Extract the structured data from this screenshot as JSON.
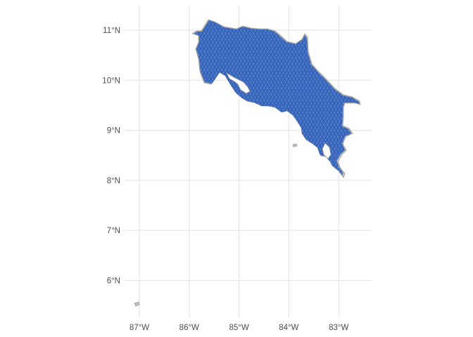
{
  "map": {
    "region": "Costa Rica",
    "fill_color": "#2f5fb8",
    "outline_color": "#9a9a9a",
    "pattern": "hexagonal grid",
    "grid": true,
    "x_ticks": [
      {
        "lon": -87,
        "label": "87°W"
      },
      {
        "lon": -86,
        "label": "86°W"
      },
      {
        "lon": -85,
        "label": "85°W"
      },
      {
        "lon": -84,
        "label": "84°W"
      },
      {
        "lon": -83,
        "label": "83°W"
      }
    ],
    "y_ticks": [
      {
        "lat": 11,
        "label": "11°N"
      },
      {
        "lat": 10,
        "label": "10°N"
      },
      {
        "lat": 9,
        "label": "9°N"
      },
      {
        "lat": 8,
        "label": "8°N"
      },
      {
        "lat": 7,
        "label": "7°N"
      },
      {
        "lat": 6,
        "label": "6°N"
      }
    ],
    "lon_range": [
      -87.1,
      -82.4
    ],
    "lat_range": [
      5.4,
      11.5
    ],
    "features": [
      {
        "name": "mainland",
        "kind": "country-polygon"
      },
      {
        "name": "isla-del-coco",
        "kind": "island"
      },
      {
        "name": "isla-del-cano",
        "kind": "island"
      }
    ]
  }
}
